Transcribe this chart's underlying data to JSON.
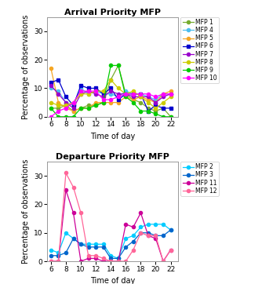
{
  "x_ticks": [
    6,
    8,
    10,
    12,
    14,
    16,
    18,
    20,
    22
  ],
  "arrival": {
    "title": "Arrival Priority MFP",
    "xlabel": "Time of day",
    "ylabel": "Percentage of observations",
    "ylim": [
      0,
      35
    ],
    "yticks": [
      0,
      10,
      20,
      30
    ],
    "series": {
      "MFP 1": {
        "color": "#77ac30",
        "marker": "o",
        "x": [
          6,
          7,
          8,
          9,
          10,
          11,
          12,
          13,
          14,
          15,
          16,
          17,
          18,
          19,
          20,
          21,
          22
        ],
        "y": [
          3,
          3,
          4,
          2,
          3,
          4,
          4,
          5,
          13,
          18,
          8,
          6,
          5,
          3,
          2,
          3,
          0
        ]
      },
      "MFP 4": {
        "color": "#4dbeee",
        "marker": "o",
        "x": [
          6,
          7,
          8,
          9,
          10,
          11,
          12,
          13,
          14,
          15,
          16,
          17,
          18,
          19,
          20,
          21,
          22
        ],
        "y": [
          10,
          9,
          5,
          4,
          10,
          8,
          9,
          8,
          8,
          7,
          9,
          8,
          8,
          7,
          6,
          8,
          8
        ]
      },
      "MFP 5": {
        "color": "#f5a623",
        "marker": "o",
        "x": [
          6,
          7,
          8,
          9,
          10,
          11,
          12,
          13,
          14,
          15,
          16,
          17,
          18,
          19,
          20,
          21,
          22
        ],
        "y": [
          17,
          5,
          3,
          2,
          3,
          3,
          5,
          5,
          5,
          5,
          7,
          6,
          7,
          6,
          5,
          8,
          9
        ]
      },
      "MFP 6": {
        "color": "#0000cd",
        "marker": "s",
        "x": [
          6,
          7,
          8,
          9,
          10,
          11,
          12,
          13,
          14,
          15,
          16,
          17,
          18,
          19,
          20,
          21,
          22
        ],
        "y": [
          12,
          13,
          7,
          4,
          11,
          10,
          10,
          8,
          10,
          6,
          8,
          8,
          8,
          2,
          4,
          3,
          3
        ]
      },
      "MFP 7": {
        "color": "#9900cc",
        "marker": "o",
        "x": [
          6,
          7,
          8,
          9,
          10,
          11,
          12,
          13,
          14,
          15,
          16,
          17,
          18,
          19,
          20,
          21,
          22
        ],
        "y": [
          11,
          8,
          5,
          3,
          8,
          9,
          8,
          7,
          9,
          8,
          8,
          7,
          7,
          7,
          5,
          7,
          8
        ]
      },
      "MFP 8": {
        "color": "#cccc00",
        "marker": "o",
        "x": [
          6,
          7,
          8,
          9,
          10,
          11,
          12,
          13,
          14,
          15,
          16,
          17,
          18,
          19,
          20,
          21,
          22
        ],
        "y": [
          5,
          4,
          4,
          5,
          8,
          8,
          9,
          9,
          13,
          10,
          8,
          9,
          7,
          5,
          3,
          5,
          7
        ]
      },
      "MFP 9": {
        "color": "#00cc00",
        "marker": "o",
        "x": [
          6,
          7,
          8,
          9,
          10,
          11,
          12,
          13,
          14,
          15,
          16,
          17,
          18,
          19,
          20,
          21,
          22
        ],
        "y": [
          3,
          0,
          0,
          0,
          3,
          3,
          4,
          5,
          18,
          18,
          7,
          5,
          2,
          2,
          1,
          0,
          0
        ]
      },
      "MFP 10": {
        "color": "#ff00ff",
        "marker": "o",
        "x": [
          6,
          7,
          8,
          9,
          10,
          11,
          12,
          13,
          14,
          15,
          16,
          17,
          18,
          19,
          20,
          21,
          22
        ],
        "y": [
          0,
          2,
          3,
          5,
          9,
          9,
          9,
          6,
          6,
          7,
          8,
          8,
          8,
          8,
          7,
          8,
          8
        ]
      }
    }
  },
  "departure": {
    "title": "Departure Priority MFP",
    "xlabel": "Time of day",
    "ylabel": "Percentage of observations",
    "ylim": [
      0,
      35
    ],
    "yticks": [
      0,
      10,
      20,
      30
    ],
    "series": {
      "MFP 2": {
        "color": "#00ccff",
        "marker": "o",
        "x": [
          6,
          7,
          8,
          9,
          10,
          11,
          12,
          13,
          14,
          15,
          16,
          17,
          18,
          19,
          20,
          21,
          22
        ],
        "y": [
          4,
          3,
          10,
          8,
          6,
          6,
          6,
          6,
          2,
          1,
          8,
          9,
          12,
          13,
          13,
          13,
          11
        ]
      },
      "MFP 3": {
        "color": "#0066cc",
        "marker": "o",
        "x": [
          6,
          7,
          8,
          9,
          10,
          11,
          12,
          13,
          14,
          15,
          16,
          17,
          18,
          19,
          20,
          21,
          22
        ],
        "y": [
          2,
          2,
          3,
          8,
          6,
          5,
          5,
          5,
          1,
          1,
          5,
          7,
          10,
          10,
          9,
          9,
          11
        ]
      },
      "MFP 11": {
        "color": "#cc0099",
        "marker": "o",
        "x": [
          6,
          7,
          8,
          9,
          10,
          11,
          12,
          13,
          14,
          15,
          16,
          17,
          18,
          19,
          20,
          21,
          22
        ],
        "y": [
          0,
          0,
          25,
          17,
          0,
          1,
          1,
          0,
          0,
          0,
          13,
          12,
          17,
          9,
          8,
          0,
          4
        ]
      },
      "MFP 12": {
        "color": "#ff6699",
        "marker": "o",
        "x": [
          6,
          7,
          8,
          9,
          10,
          11,
          12,
          13,
          14,
          15,
          16,
          17,
          18,
          19,
          20,
          21,
          22
        ],
        "y": [
          0,
          0,
          31,
          26,
          17,
          2,
          2,
          1,
          0,
          0,
          0,
          4,
          10,
          9,
          9,
          0,
          4
        ]
      }
    }
  },
  "legend_fontsize": 5.5,
  "tick_fontsize": 6.5,
  "label_fontsize": 7,
  "title_fontsize": 8,
  "linewidth": 0.9,
  "markersize": 3
}
